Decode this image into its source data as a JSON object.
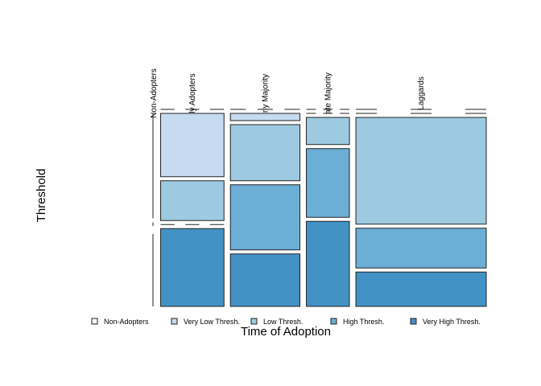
{
  "chart_data": {
    "type": "mosaic",
    "xlabel": "Time of Adoption",
    "ylabel": "Threshold",
    "columns": [
      "Non-Adopters",
      "ly Adopters",
      "rly Majority",
      "ate Majority",
      "Laggards"
    ],
    "column_shares": [
      0.004,
      0.206,
      0.226,
      0.14,
      0.424
    ],
    "rows": [
      "Non-Adopters",
      "Very Low Thresh.",
      "Low Thresh.",
      "High Thresh.",
      "Very High Thresh."
    ],
    "proportions": [
      [
        0.0,
        0.0,
        0.0,
        0.0,
        0.0
      ],
      [
        0.58,
        0.35,
        0.04,
        0.0,
        0.0
      ],
      [
        0.02,
        0.22,
        0.31,
        0.15,
        0.59
      ],
      [
        0.0,
        0.0,
        0.36,
        0.38,
        0.22
      ],
      [
        0.4,
        0.43,
        0.29,
        0.47,
        0.19
      ]
    ],
    "colors": [
      "#f7fbff",
      "#c6dbef",
      "#9ecae1",
      "#6baed6",
      "#4292c6"
    ],
    "legend": {
      "position": "bottom",
      "entries": [
        "Non-Adopters",
        "Very Low Thresh.",
        "Low Thresh.",
        "High Thresh.",
        "Very High Thresh."
      ]
    }
  }
}
